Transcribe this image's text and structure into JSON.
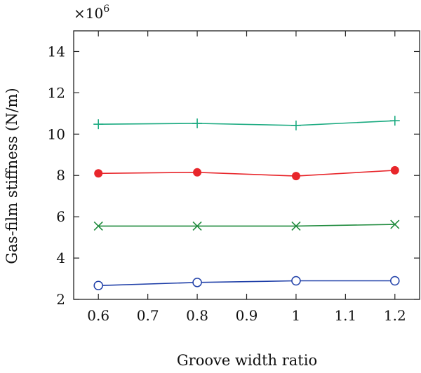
{
  "chart_data": {
    "type": "line",
    "xlabel": "Groove width ratio",
    "ylabel": "Gas-film stiffness (N/m)",
    "y_multiplier": "×10",
    "y_multiplier_exp": "6",
    "xlim": [
      0.55,
      1.25
    ],
    "ylim": [
      2,
      15
    ],
    "x_ticks": [
      0.6,
      0.7,
      0.8,
      0.9,
      1,
      1.1,
      1.2
    ],
    "x_tick_labels": [
      "0.6",
      "0.7",
      "0.8",
      "0.9",
      "1",
      "1.1",
      "1.2"
    ],
    "y_ticks": [
      2,
      4,
      6,
      8,
      10,
      12,
      14
    ],
    "y_tick_labels": [
      "2",
      "4",
      "6",
      "8",
      "10",
      "12",
      "14"
    ],
    "grid": false,
    "series": [
      {
        "x": [
          0.6,
          0.8,
          1.0,
          1.2
        ],
        "values": [
          10.48,
          10.52,
          10.42,
          10.65
        ],
        "marker": "plus",
        "color": "#1aaa80"
      },
      {
        "x": [
          0.6,
          0.8,
          1.0,
          1.2
        ],
        "values": [
          8.1,
          8.15,
          7.97,
          8.25
        ],
        "marker": "filled-circle",
        "color": "#e8262b"
      },
      {
        "x": [
          0.6,
          0.8,
          1.0,
          1.2
        ],
        "values": [
          5.55,
          5.55,
          5.55,
          5.63
        ],
        "marker": "cross",
        "color": "#1e8a3c"
      },
      {
        "x": [
          0.6,
          0.8,
          1.0,
          1.2
        ],
        "values": [
          2.67,
          2.82,
          2.9,
          2.9
        ],
        "marker": "open-circle",
        "color": "#1f3fa8"
      }
    ]
  }
}
